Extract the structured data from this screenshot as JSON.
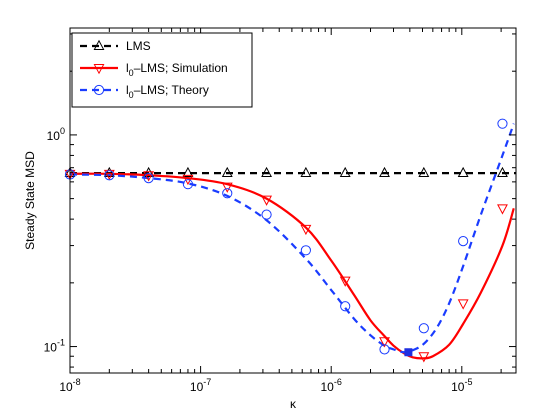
{
  "chart_data": {
    "type": "line",
    "title": "",
    "xlabel": "κ",
    "ylabel": "Steady State MSD",
    "xscale": "log",
    "yscale": "log",
    "xlim": [
      1e-08,
      2.6e-05
    ],
    "ylim": [
      0.075,
      3.2
    ],
    "grid": false,
    "legend_position": "top-left",
    "x_ticks": [
      {
        "value": 1e-08,
        "base": "10",
        "exp": "-8"
      },
      {
        "value": 1e-07,
        "base": "10",
        "exp": "-7"
      },
      {
        "value": 1e-06,
        "base": "10",
        "exp": "-6"
      },
      {
        "value": 1e-05,
        "base": "10",
        "exp": "-5"
      }
    ],
    "y_ticks": [
      {
        "value": 0.1,
        "base": "10",
        "exp": "-1"
      },
      {
        "value": 1,
        "base": "10",
        "exp": "0"
      }
    ],
    "series": [
      {
        "label_parts": {
          "main": "LMS",
          "sub": "",
          "rest": ""
        },
        "color": "#000000",
        "dash": "7,5",
        "marker": "triangle-up",
        "curve": {
          "x": [
            1e-08,
            2.6e-05
          ],
          "y": [
            0.66,
            0.66
          ]
        },
        "markers": {
          "x": [
            1e-08,
            2e-08,
            4e-08,
            8e-08,
            1.6e-07,
            3.2e-07,
            6.4e-07,
            1.28e-06,
            2.56e-06,
            5.12e-06,
            1.024e-05,
            2.048e-05
          ],
          "y": [
            0.66,
            0.66,
            0.66,
            0.66,
            0.66,
            0.66,
            0.66,
            0.66,
            0.66,
            0.66,
            0.66,
            0.66
          ]
        }
      },
      {
        "label_parts": {
          "main": "l",
          "sub": "0",
          "rest": "–LMS; Simulation"
        },
        "color": "#ff0000",
        "dash": "",
        "marker": "triangle-down",
        "curve": {
          "x": [
            1e-08,
            2e-08,
            4e-08,
            8e-08,
            1.6e-07,
            3.2e-07,
            6.4e-07,
            1e-06,
            1.5e-06,
            2e-06,
            2.56e-06,
            3e-06,
            3.6e-06,
            4.2e-06,
            5.12e-06,
            6e-06,
            8e-06,
            1.024e-05,
            1.4e-05,
            2.048e-05,
            2.5e-05
          ],
          "y": [
            0.655,
            0.655,
            0.645,
            0.625,
            0.585,
            0.5,
            0.365,
            0.255,
            0.175,
            0.133,
            0.112,
            0.101,
            0.093,
            0.089,
            0.088,
            0.09,
            0.102,
            0.128,
            0.18,
            0.3,
            0.45
          ]
        },
        "markers": {
          "x": [
            1e-08,
            2e-08,
            4e-08,
            8e-08,
            1.6e-07,
            3.2e-07,
            6.4e-07,
            1.28e-06,
            2.56e-06,
            5.12e-06,
            1.024e-05,
            2.048e-05
          ],
          "y": [
            0.655,
            0.655,
            0.645,
            0.62,
            0.57,
            0.495,
            0.36,
            0.205,
            0.106,
            0.09,
            0.16,
            0.45
          ]
        }
      },
      {
        "label_parts": {
          "main": "l",
          "sub": "0",
          "rest": "–LMS; Theory"
        },
        "color": "#1a3cff",
        "dash": "7,5",
        "marker": "circle",
        "curve": {
          "x": [
            1e-08,
            2e-08,
            4e-08,
            8e-08,
            1.6e-07,
            3.2e-07,
            6.4e-07,
            1e-06,
            1.5e-06,
            2e-06,
            2.56e-06,
            3e-06,
            3.6e-06,
            4.2e-06,
            5.12e-06,
            6.4e-06,
            8e-06,
            1.024e-05,
            1.4e-05,
            2.048e-05,
            2.5e-05
          ],
          "y": [
            0.65,
            0.645,
            0.625,
            0.59,
            0.515,
            0.395,
            0.26,
            0.185,
            0.135,
            0.113,
            0.101,
            0.097,
            0.094,
            0.096,
            0.103,
            0.122,
            0.16,
            0.24,
            0.42,
            0.8,
            1.13
          ]
        },
        "markers": {
          "x": [
            1e-08,
            2e-08,
            4e-08,
            8e-08,
            1.6e-07,
            3.2e-07,
            6.4e-07,
            1.28e-06,
            2.56e-06,
            5.12e-06,
            1.024e-05,
            2.048e-05
          ],
          "y": [
            0.65,
            0.645,
            0.625,
            0.585,
            0.53,
            0.42,
            0.285,
            0.155,
            0.097,
            0.122,
            0.315,
            1.13
          ]
        }
      }
    ],
    "highlight_point": {
      "x": 3.9e-06,
      "y": 0.094,
      "color": "#1f2fe0"
    }
  }
}
